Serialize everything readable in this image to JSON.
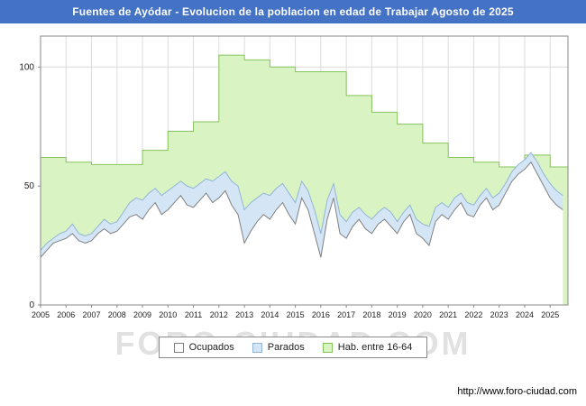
{
  "title": "Fuentes de Ayódar - Evolucion de la poblacion en edad de Trabajar Agosto de 2025",
  "watermark": "FORO-CIUDAD.COM",
  "footer": {
    "url": "http://www.foro-ciudad.com"
  },
  "colors": {
    "titlebar_bg": "#4472c4",
    "titlebar_text": "#ffffff",
    "grid": "#dcdcdc",
    "axis": "#888888",
    "hab_fill": "#d9f4c2",
    "hab_stroke": "#86c35e",
    "parados_fill": "#d4e6f6",
    "parados_stroke": "#92b4d6",
    "ocupados_fill": "#ffffff",
    "ocupados_stroke": "#808080"
  },
  "legend": {
    "items": [
      {
        "label": "Ocupados",
        "fill": "#ffffff",
        "stroke": "#808080"
      },
      {
        "label": "Parados",
        "fill": "#d4e6f6",
        "stroke": "#92b4d6"
      },
      {
        "label": "Hab. entre 16-64",
        "fill": "#d9f4c2",
        "stroke": "#86c35e"
      }
    ]
  },
  "chart_data": {
    "type": "area",
    "title": "Fuentes de Ayódar - Evolucion de la poblacion en edad de Trabajar Agosto de 2025",
    "legend_position": "bottom-center",
    "grid": true,
    "x_axis": {
      "min": 2005,
      "max": 2025.7,
      "ticks": [
        2005,
        2006,
        2007,
        2008,
        2009,
        2010,
        2011,
        2012,
        2013,
        2014,
        2015,
        2016,
        2017,
        2018,
        2019,
        2020,
        2021,
        2022,
        2023,
        2024,
        2025
      ]
    },
    "y_axis": {
      "min": 0,
      "max": 113,
      "ticks": [
        0,
        50,
        100
      ]
    },
    "series": [
      {
        "name": "Hab. entre 16-64",
        "type": "step-area",
        "fill": "#d9f4c2",
        "stroke": "#86c35e",
        "years": [
          2005,
          2006,
          2007,
          2008,
          2009,
          2010,
          2011,
          2012,
          2013,
          2014,
          2015,
          2016,
          2017,
          2018,
          2019,
          2020,
          2021,
          2022,
          2023,
          2024,
          2025
        ],
        "values": [
          62,
          60,
          59,
          59,
          65,
          73,
          77,
          105,
          103,
          100,
          98,
          98,
          88,
          81,
          76,
          68,
          62,
          60,
          58,
          63,
          58
        ]
      },
      {
        "name": "Parados",
        "type": "area",
        "stacking": "on-top-of-Ocupados",
        "fill": "#d4e6f6",
        "stroke": "#92b4d6",
        "x_start": 2005,
        "x_step": 0.25,
        "values": [
          3,
          3,
          2,
          3,
          3,
          4,
          3,
          3,
          3,
          3,
          4,
          4,
          4,
          5,
          6,
          7,
          8,
          7,
          6,
          8,
          8,
          7,
          6,
          8,
          8,
          7,
          6,
          9,
          9,
          8,
          10,
          12,
          14,
          12,
          10,
          9,
          10,
          9,
          8,
          9,
          9,
          7,
          8,
          10,
          10,
          8,
          6,
          8,
          7,
          6,
          5,
          6,
          6,
          5,
          5,
          6,
          5,
          4,
          4,
          6,
          6,
          8,
          6,
          5,
          5,
          5,
          4,
          5,
          5,
          4,
          4,
          5,
          5,
          4,
          4,
          4,
          4,
          4,
          5,
          5,
          6,
          6,
          6
        ]
      },
      {
        "name": "Ocupados",
        "type": "area",
        "fill": "#ffffff",
        "stroke": "#808080",
        "x_start": 2005,
        "x_step": 0.25,
        "values": [
          20,
          23,
          26,
          27,
          28,
          30,
          27,
          26,
          27,
          30,
          32,
          30,
          31,
          34,
          37,
          38,
          36,
          40,
          43,
          38,
          40,
          43,
          46,
          42,
          41,
          44,
          47,
          43,
          45,
          48,
          42,
          38,
          26,
          31,
          35,
          38,
          36,
          40,
          43,
          38,
          34,
          45,
          40,
          30,
          20,
          36,
          45,
          30,
          28,
          33,
          36,
          32,
          30,
          34,
          36,
          33,
          30,
          35,
          38,
          30,
          28,
          25,
          35,
          38,
          36,
          40,
          43,
          38,
          37,
          42,
          45,
          40,
          42,
          47,
          52,
          55,
          57,
          60,
          55,
          50,
          45,
          42,
          40
        ]
      }
    ]
  }
}
